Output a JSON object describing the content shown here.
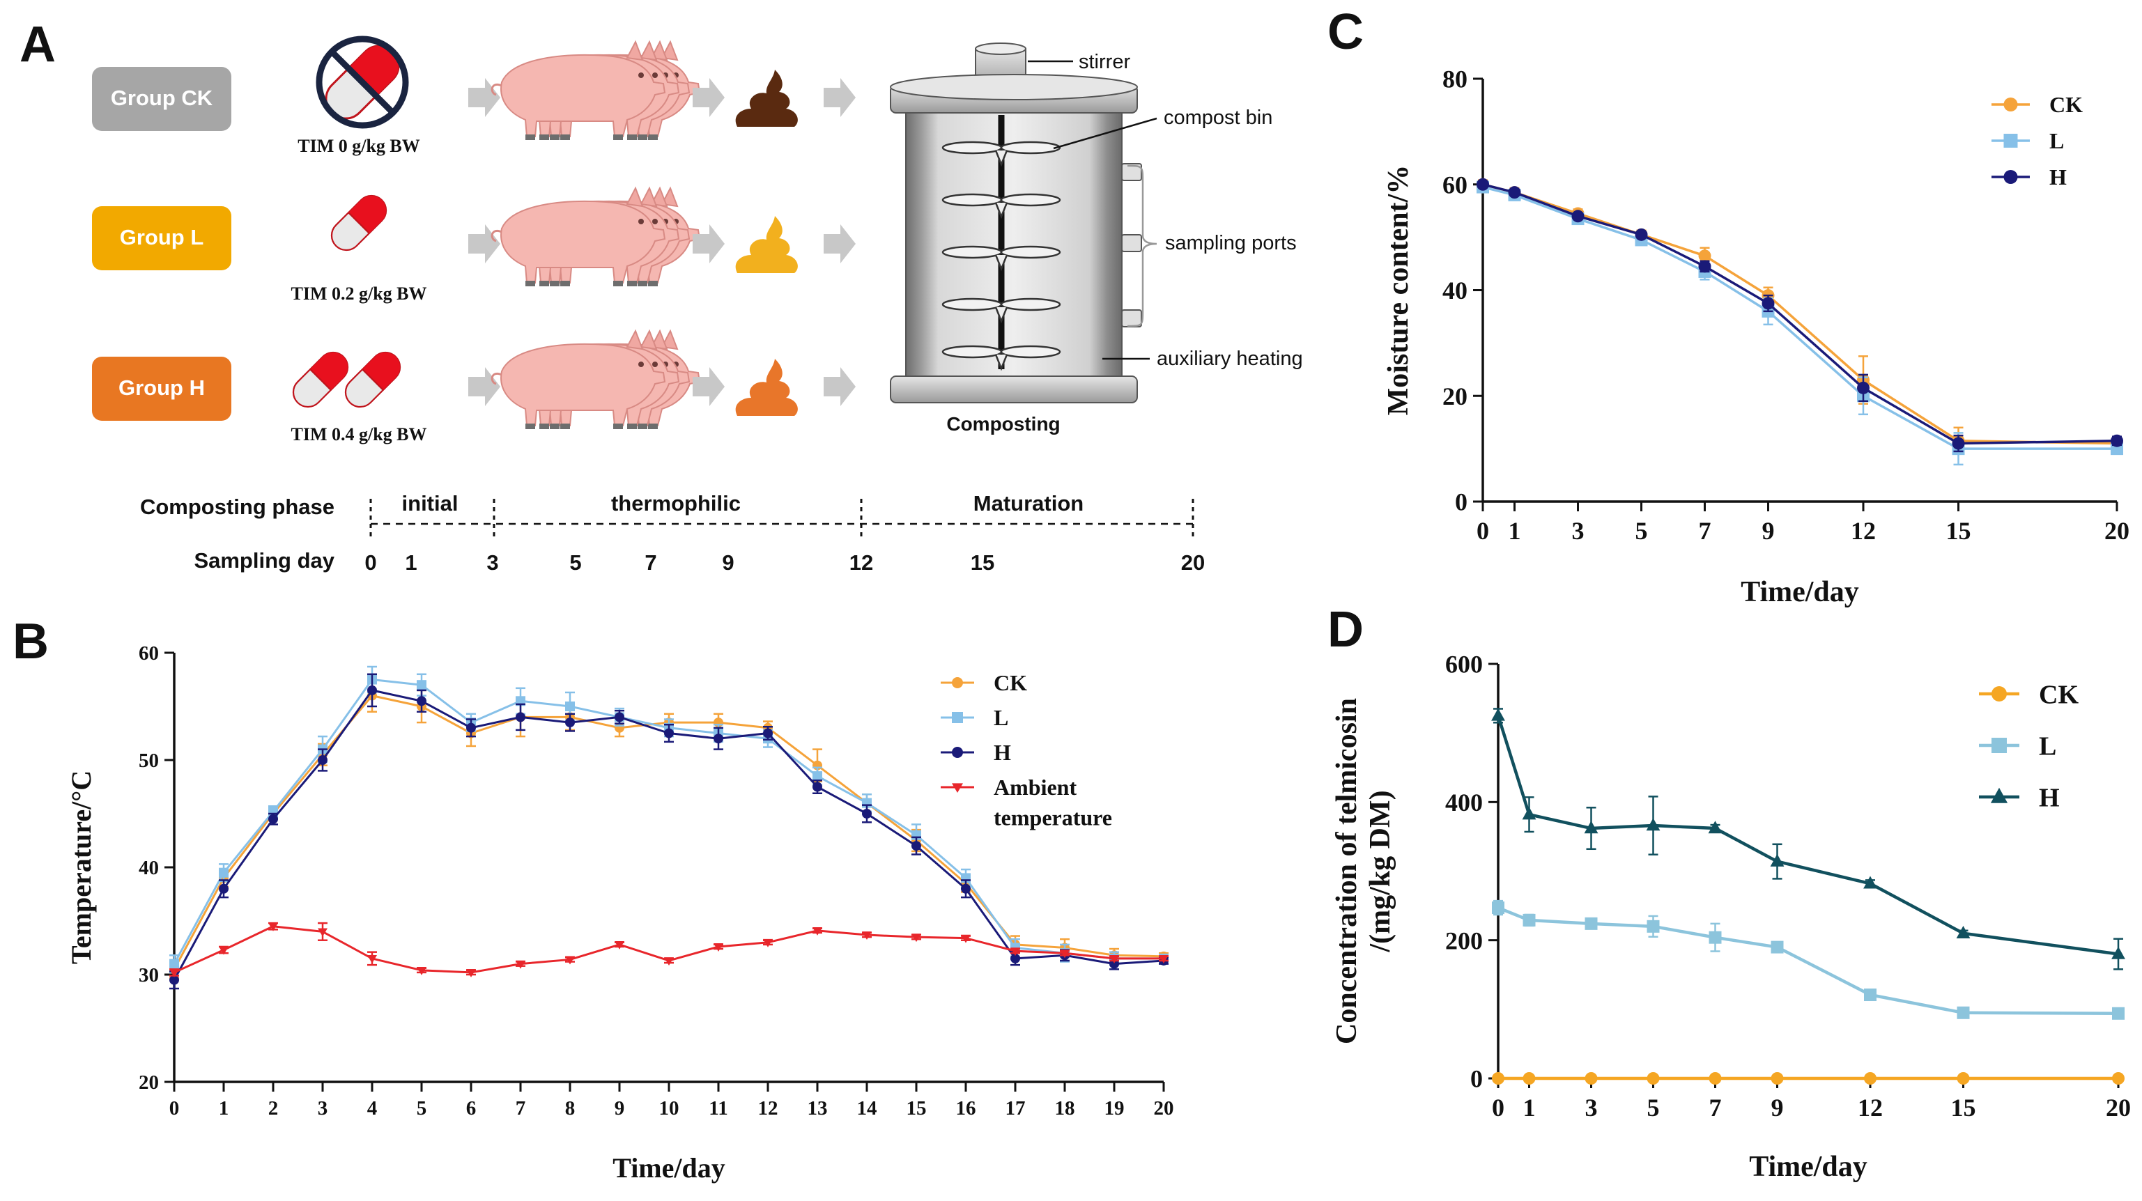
{
  "panel_labels": {
    "a": "A",
    "b": "B",
    "c": "C",
    "d": "D"
  },
  "colors": {
    "ck": "#f5a33a",
    "l": "#86c0e8",
    "h": "#1a1a78",
    "ambient": "#e8262b",
    "d_ck": "#f5a623",
    "d_l": "#8cc4dc",
    "d_h": "#11505e",
    "group_ck": "#a6a6a6",
    "group_l": "#f2a900",
    "group_h": "#e87722",
    "pig": "#f5b7b1",
    "arrow": "#c8c8c8"
  },
  "schematic": {
    "groups": [
      {
        "label": "Group CK",
        "dose": "TIM 0 g/kg BW",
        "feces_color": "#5a2a10"
      },
      {
        "label": "Group L",
        "dose": "TIM 0.2 g/kg BW",
        "feces_color": "#f2b01e"
      },
      {
        "label": "Group H",
        "dose": "TIM 0.4 g/kg BW",
        "feces_color": "#e8762a"
      }
    ],
    "reactor": {
      "stirrer": "stirrer",
      "compost_bin": "compost bin",
      "sampling_ports": "sampling ports",
      "auxiliary_heating": "auxiliary heating",
      "caption": "Composting"
    },
    "timeline": {
      "phase_label": "Composting phase",
      "sampling_label": "Sampling day",
      "phases": [
        "initial",
        "thermophilic",
        "Maturation"
      ],
      "days": [
        "0",
        "1",
        "3",
        "5",
        "7",
        "9",
        "12",
        "15",
        "20"
      ]
    }
  },
  "chart_data": [
    {
      "id": "B",
      "type": "line",
      "xlabel": "Time/day",
      "ylabel": "Temperature/°C",
      "xlim": [
        0,
        20
      ],
      "ylim": [
        20,
        60
      ],
      "xticks": [
        0,
        1,
        2,
        3,
        4,
        5,
        6,
        7,
        8,
        9,
        10,
        11,
        12,
        13,
        14,
        15,
        16,
        17,
        18,
        19,
        20
      ],
      "yticks": [
        20,
        30,
        40,
        50,
        60
      ],
      "legend": [
        "CK",
        "L",
        "H",
        "Ambient temperature"
      ],
      "x": [
        0,
        1,
        2,
        3,
        4,
        5,
        6,
        7,
        8,
        9,
        10,
        11,
        12,
        13,
        14,
        15,
        16,
        17,
        18,
        19,
        20
      ],
      "series": [
        {
          "name": "CK",
          "color": "#f5a33a",
          "marker": "circle",
          "values": [
            30.5,
            39.0,
            45.0,
            50.5,
            56.0,
            55.0,
            52.5,
            54.0,
            54.0,
            53.0,
            53.5,
            53.5,
            53.0,
            49.5,
            46.0,
            42.5,
            38.5,
            32.8,
            32.5,
            31.8,
            31.7
          ],
          "errors": [
            0.8,
            0.8,
            0.5,
            1.0,
            1.5,
            1.5,
            1.2,
            1.8,
            1.2,
            0.8,
            0.8,
            0.8,
            0.6,
            1.5,
            0.8,
            1.0,
            0.8,
            0.8,
            0.8,
            0.6,
            0.3
          ]
        },
        {
          "name": "L",
          "color": "#86c0e8",
          "marker": "square",
          "values": [
            31.0,
            39.5,
            45.2,
            51.0,
            57.5,
            57.0,
            53.5,
            55.5,
            55.0,
            54.0,
            53.0,
            52.5,
            52.0,
            48.5,
            46.0,
            43.0,
            39.0,
            32.5,
            32.0,
            31.5,
            31.5
          ],
          "errors": [
            0.8,
            0.8,
            0.5,
            1.2,
            1.2,
            1.0,
            0.8,
            1.2,
            1.3,
            0.8,
            0.8,
            0.8,
            0.8,
            0.8,
            0.8,
            1.0,
            0.8,
            0.8,
            0.8,
            0.6,
            0.3
          ]
        },
        {
          "name": "H",
          "color": "#1a1a78",
          "marker": "circle",
          "values": [
            29.5,
            38.0,
            44.5,
            50.0,
            56.5,
            55.5,
            53.0,
            54.0,
            53.5,
            54.0,
            52.5,
            52.0,
            52.5,
            47.5,
            45.0,
            42.0,
            38.0,
            31.5,
            31.8,
            31.0,
            31.3
          ],
          "errors": [
            0.8,
            0.8,
            0.5,
            1.0,
            1.5,
            1.0,
            0.8,
            1.2,
            0.8,
            0.6,
            0.8,
            1.0,
            0.6,
            0.6,
            0.8,
            0.8,
            0.8,
            0.6,
            0.5,
            0.5,
            0.3
          ]
        },
        {
          "name": "Ambient temperature",
          "color": "#e8262b",
          "marker": "triangle-down",
          "values": [
            30.2,
            32.3,
            34.5,
            34.0,
            31.5,
            30.4,
            30.2,
            31.0,
            31.4,
            32.8,
            31.3,
            32.6,
            33.0,
            34.1,
            33.7,
            33.5,
            33.4,
            32.2,
            32.0,
            31.5,
            31.5
          ],
          "errors": [
            0.3,
            0.3,
            0.3,
            0.8,
            0.6,
            0.2,
            0.2,
            0.2,
            0.2,
            0.2,
            0.2,
            0.2,
            0.2,
            0.2,
            0.2,
            0.2,
            0.2,
            0.2,
            0.2,
            0.2,
            0.2
          ]
        }
      ]
    },
    {
      "id": "C",
      "type": "line",
      "xlabel": "Time/day",
      "ylabel": "Moisture content/%",
      "xlim": [
        0,
        20
      ],
      "ylim": [
        0,
        80
      ],
      "xticks": [
        0,
        1,
        3,
        5,
        7,
        9,
        12,
        15,
        20
      ],
      "yticks": [
        0,
        20,
        40,
        60,
        80
      ],
      "legend": [
        "CK",
        "L",
        "H"
      ],
      "x": [
        0,
        1,
        3,
        5,
        7,
        9,
        12,
        15,
        20
      ],
      "series": [
        {
          "name": "CK",
          "color": "#f5a33a",
          "marker": "circle",
          "values": [
            60.0,
            58.5,
            54.5,
            50.5,
            46.5,
            39.0,
            23.0,
            11.5,
            11.0
          ],
          "errors": [
            0.8,
            0.8,
            0.8,
            0.8,
            1.5,
            1.5,
            4.5,
            2.5,
            1.0
          ]
        },
        {
          "name": "L",
          "color": "#86c0e8",
          "marker": "square",
          "values": [
            59.5,
            58.0,
            53.5,
            49.5,
            43.5,
            36.0,
            20.0,
            10.0,
            10.0
          ],
          "errors": [
            0.8,
            0.8,
            0.8,
            0.8,
            1.5,
            2.5,
            3.5,
            3.0,
            1.0
          ]
        },
        {
          "name": "H",
          "color": "#1a1a78",
          "marker": "circle",
          "values": [
            60.0,
            58.5,
            54.0,
            50.5,
            44.5,
            37.5,
            21.5,
            11.0,
            11.5
          ],
          "errors": [
            0.5,
            0.5,
            0.5,
            0.5,
            1.0,
            1.5,
            2.5,
            1.5,
            0.8
          ]
        }
      ]
    },
    {
      "id": "D",
      "type": "line",
      "xlabel": "Time/day",
      "ylabel": "Concentration of telmicosin /(mg/kg DM)",
      "ylabel_lines": [
        "Concentration of telmicosin",
        "/(mg/kg DM)"
      ],
      "xlim": [
        0,
        20
      ],
      "ylim": [
        0,
        600
      ],
      "xticks": [
        0,
        1,
        3,
        5,
        7,
        9,
        12,
        15,
        20
      ],
      "yticks": [
        0,
        200,
        400,
        600
      ],
      "legend": [
        "CK",
        "L",
        "H"
      ],
      "x": [
        0,
        1,
        3,
        5,
        7,
        9,
        12,
        15,
        20
      ],
      "series": [
        {
          "name": "CK",
          "color": "#f5a623",
          "marker": "circle",
          "values": [
            0,
            0,
            0,
            0,
            0,
            0,
            0,
            0,
            0
          ],
          "errors": [
            0,
            0,
            0,
            0,
            0,
            0,
            0,
            0,
            0
          ]
        },
        {
          "name": "L",
          "color": "#8cc4dc",
          "marker": "square",
          "values": [
            247,
            229,
            224,
            220,
            204,
            190,
            121,
            95,
            94
          ],
          "errors": [
            10,
            8,
            6,
            15,
            20,
            5,
            5,
            4,
            3
          ]
        },
        {
          "name": "H",
          "color": "#11505e",
          "marker": "triangle",
          "values": [
            525,
            382,
            362,
            366,
            362,
            314,
            282,
            210,
            180
          ],
          "errors": [
            10,
            25,
            30,
            42,
            5,
            25,
            5,
            4,
            22
          ]
        }
      ]
    }
  ]
}
